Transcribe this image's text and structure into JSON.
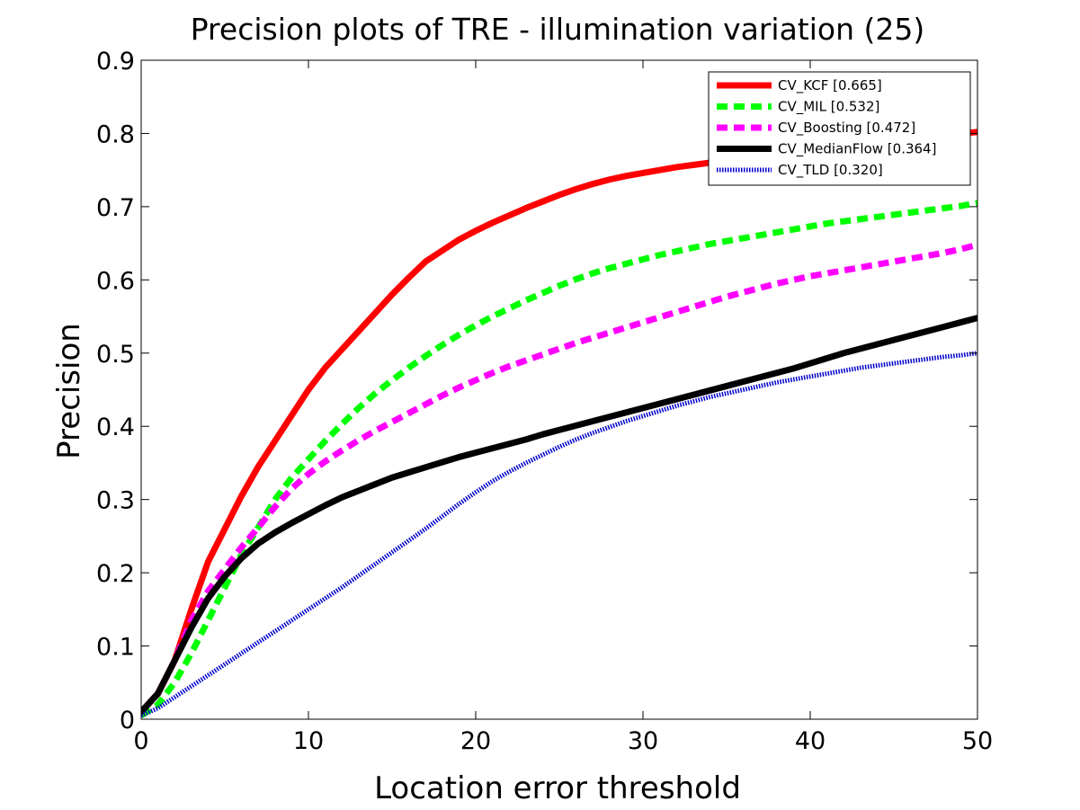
{
  "chart_data": {
    "type": "line",
    "title": "Precision plots of TRE - illumination variation (25)",
    "xlabel": "Location error threshold",
    "ylabel": "Precision",
    "xlim": [
      0,
      50
    ],
    "ylim": [
      0,
      0.9
    ],
    "xticks": [
      0,
      10,
      20,
      30,
      40,
      50
    ],
    "yticks": [
      0,
      0.1,
      0.2,
      0.3,
      0.4,
      0.5,
      0.6,
      0.7,
      0.8,
      0.9
    ],
    "ytick_labels": [
      "0",
      "0.1",
      "0.2",
      "0.3",
      "0.4",
      "0.5",
      "0.6",
      "0.7",
      "0.8",
      "0.9"
    ],
    "grid": false,
    "legend_position": "top-right",
    "x": [
      0,
      1,
      2,
      3,
      4,
      5,
      6,
      7,
      8,
      9,
      10,
      11,
      12,
      13,
      14,
      15,
      16,
      17,
      18,
      19,
      20,
      21,
      22,
      23,
      24,
      25,
      26,
      27,
      28,
      29,
      30,
      31,
      32,
      33,
      34,
      35,
      36,
      37,
      38,
      39,
      40,
      41,
      42,
      43,
      44,
      45,
      46,
      47,
      48,
      49,
      50
    ],
    "series": [
      {
        "name": "CV_KCF [0.665]",
        "color": "#ff0000",
        "style": "solid",
        "values": [
          0.01,
          0.035,
          0.08,
          0.15,
          0.215,
          0.26,
          0.305,
          0.345,
          0.38,
          0.415,
          0.45,
          0.48,
          0.505,
          0.53,
          0.555,
          0.58,
          0.603,
          0.625,
          0.64,
          0.655,
          0.667,
          0.678,
          0.688,
          0.698,
          0.707,
          0.716,
          0.724,
          0.731,
          0.737,
          0.742,
          0.746,
          0.75,
          0.754,
          0.757,
          0.76,
          0.763,
          0.766,
          0.769,
          0.772,
          0.775,
          0.777,
          0.78,
          0.782,
          0.785,
          0.787,
          0.79,
          0.792,
          0.795,
          0.797,
          0.8,
          0.802
        ]
      },
      {
        "name": "CV_MIL [0.532]",
        "color": "#00ff00",
        "style": "dashed",
        "values": [
          0.005,
          0.02,
          0.05,
          0.09,
          0.135,
          0.18,
          0.225,
          0.262,
          0.3,
          0.33,
          0.355,
          0.38,
          0.403,
          0.425,
          0.445,
          0.463,
          0.48,
          0.496,
          0.511,
          0.525,
          0.538,
          0.55,
          0.561,
          0.572,
          0.582,
          0.592,
          0.601,
          0.609,
          0.616,
          0.622,
          0.628,
          0.634,
          0.639,
          0.644,
          0.649,
          0.653,
          0.657,
          0.661,
          0.665,
          0.669,
          0.673,
          0.677,
          0.68,
          0.683,
          0.686,
          0.689,
          0.692,
          0.695,
          0.698,
          0.701,
          0.705
        ]
      },
      {
        "name": "CV_Boosting [0.472]",
        "color": "#ff00ff",
        "style": "dashed",
        "values": [
          0.01,
          0.035,
          0.08,
          0.135,
          0.175,
          0.205,
          0.235,
          0.262,
          0.29,
          0.315,
          0.335,
          0.352,
          0.367,
          0.381,
          0.394,
          0.406,
          0.418,
          0.43,
          0.442,
          0.453,
          0.463,
          0.473,
          0.482,
          0.49,
          0.498,
          0.506,
          0.514,
          0.521,
          0.528,
          0.535,
          0.542,
          0.549,
          0.556,
          0.563,
          0.57,
          0.577,
          0.583,
          0.589,
          0.595,
          0.6,
          0.605,
          0.609,
          0.613,
          0.617,
          0.621,
          0.625,
          0.629,
          0.633,
          0.637,
          0.642,
          0.648
        ]
      },
      {
        "name": "CV_MedianFlow [0.364]",
        "color": "#000000",
        "style": "solid",
        "values": [
          0.01,
          0.035,
          0.08,
          0.125,
          0.165,
          0.195,
          0.22,
          0.24,
          0.255,
          0.268,
          0.28,
          0.292,
          0.303,
          0.312,
          0.321,
          0.33,
          0.337,
          0.344,
          0.351,
          0.358,
          0.364,
          0.37,
          0.376,
          0.382,
          0.389,
          0.395,
          0.401,
          0.407,
          0.413,
          0.419,
          0.425,
          0.431,
          0.437,
          0.443,
          0.449,
          0.455,
          0.461,
          0.467,
          0.473,
          0.479,
          0.486,
          0.493,
          0.5,
          0.506,
          0.512,
          0.518,
          0.524,
          0.53,
          0.536,
          0.542,
          0.548
        ]
      },
      {
        "name": "CV_TLD [0.320]",
        "color": "#0000cc",
        "style": "dotted",
        "values": [
          0.005,
          0.015,
          0.03,
          0.045,
          0.06,
          0.075,
          0.09,
          0.105,
          0.12,
          0.135,
          0.15,
          0.165,
          0.18,
          0.196,
          0.212,
          0.228,
          0.244,
          0.26,
          0.277,
          0.294,
          0.31,
          0.325,
          0.338,
          0.35,
          0.361,
          0.372,
          0.382,
          0.391,
          0.399,
          0.407,
          0.414,
          0.421,
          0.428,
          0.434,
          0.44,
          0.445,
          0.45,
          0.455,
          0.46,
          0.464,
          0.468,
          0.472,
          0.476,
          0.48,
          0.483,
          0.486,
          0.489,
          0.492,
          0.495,
          0.497,
          0.5
        ]
      }
    ]
  }
}
